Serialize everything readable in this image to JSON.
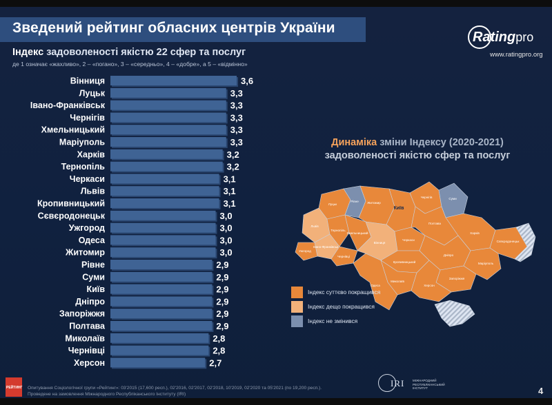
{
  "header": {
    "title": "Зведений рейтинг обласних центрів України"
  },
  "logo": {
    "word_main": "Rating",
    "word_pro": "pro",
    "url": "www.ratingpro.org"
  },
  "chart_data": [
    {
      "type": "bar",
      "orientation": "horizontal",
      "title_highlight": "Індекс",
      "title_rest": "задоволеності якістю 22 сфер та послуг",
      "scale_note": "де 1 означає «жахливо», 2 – «погано», 3 – «середньо», 4 – «добре», а 5 – «відмінно»",
      "categories": [
        "Вінниця",
        "Луцьк",
        "Івано-Франківськ",
        "Чернігів",
        "Хмельницький",
        "Маріуполь",
        "Харків",
        "Тернопіль",
        "Черкаси",
        "Львів",
        "Кропивницький",
        "Сєвєродонецьк",
        "Ужгород",
        "Одеса",
        "Житомир",
        "Рівне",
        "Суми",
        "Київ",
        "Дніпро",
        "Запоріжжя",
        "Полтава",
        "Миколаїв",
        "Чернівці",
        "Херсон"
      ],
      "values": [
        3.6,
        3.3,
        3.3,
        3.3,
        3.3,
        3.3,
        3.2,
        3.2,
        3.1,
        3.1,
        3.1,
        3.0,
        3.0,
        3.0,
        3.0,
        2.9,
        2.9,
        2.9,
        2.9,
        2.9,
        2.9,
        2.8,
        2.8,
        2.7
      ],
      "value_labels": [
        "3,6",
        "3,3",
        "3,3",
        "3,3",
        "3,3",
        "3,3",
        "3,2",
        "3,2",
        "3,1",
        "3,1",
        "3,1",
        "3,0",
        "3,0",
        "3,0",
        "3,0",
        "2,9",
        "2,9",
        "2,9",
        "2,9",
        "2,9",
        "2,9",
        "2,8",
        "2,8",
        "2,7"
      ],
      "xlim": [
        0,
        3.6
      ],
      "grid": false,
      "colors": {
        "bar": "#3f6394",
        "bar_shadow": "#2a4670"
      }
    },
    {
      "type": "map",
      "title_part1": "Динаміка",
      "title_part2": "зміни Індексу (2020-2021)",
      "title_line2": "задоволеності якістю сфер та послуг",
      "regions": [
        {
          "name": "Луцьк",
          "status": "dark"
        },
        {
          "name": "Рівне",
          "status": "none"
        },
        {
          "name": "Житомир",
          "status": "dark"
        },
        {
          "name": "Київ",
          "status": "dark"
        },
        {
          "name": "Чернігів",
          "status": "dark"
        },
        {
          "name": "Суми",
          "status": "none"
        },
        {
          "name": "Харків",
          "status": "dark"
        },
        {
          "name": "Львів",
          "status": "light"
        },
        {
          "name": "Тернопіль",
          "status": "dark"
        },
        {
          "name": "Хмельницький",
          "status": "dark"
        },
        {
          "name": "Вінниця",
          "status": "light"
        },
        {
          "name": "Черкаси",
          "status": "dark"
        },
        {
          "name": "Полтава",
          "status": "dark"
        },
        {
          "name": "Сєвєродонецьк",
          "status": "dark"
        },
        {
          "name": "Івано-Франківськ",
          "status": "light"
        },
        {
          "name": "Ужгород",
          "status": "dark"
        },
        {
          "name": "Чернівці",
          "status": "dark"
        },
        {
          "name": "Кропивницький",
          "status": "dark"
        },
        {
          "name": "Дніпро",
          "status": "dark"
        },
        {
          "name": "Запоріжжя",
          "status": "dark"
        },
        {
          "name": "Маріуполь",
          "status": "dark"
        },
        {
          "name": "Миколаїв",
          "status": "dark"
        },
        {
          "name": "Одеса",
          "status": "dark"
        },
        {
          "name": "Херсон",
          "status": "dark"
        }
      ],
      "legend": [
        {
          "label": "Індекс суттєво покращився",
          "color": "#e8883a"
        },
        {
          "label": "Індекс дещо покращився",
          "color": "#f2b17a"
        },
        {
          "label": "Індекс не змінився",
          "color": "#7c8fae"
        }
      ],
      "colors": {
        "dark": "#e8883a",
        "light": "#f2b17a",
        "none": "#7c8fae",
        "stripe": "#aab6c8"
      }
    }
  ],
  "footer": {
    "badge": "РЕЙТИНГ",
    "source_line1": "Опитування Соціологічної групи «Рейтинг»: 03'2015 (17,600 респ.), 02'2016, 02'2017, 02'2018, 10'2019, 02'2020 та 05'2021 (по 19,200 респ.).",
    "source_line2": "Проведене на замовлення Міжнародного Республіканського Інституту (IRI)",
    "iri_word": "IRI",
    "iri_sub": "МІЖНАРОДНИЙ РЕСПУБЛІКАНСЬКИЙ ІНСТИТУТ",
    "page_number": "4"
  }
}
